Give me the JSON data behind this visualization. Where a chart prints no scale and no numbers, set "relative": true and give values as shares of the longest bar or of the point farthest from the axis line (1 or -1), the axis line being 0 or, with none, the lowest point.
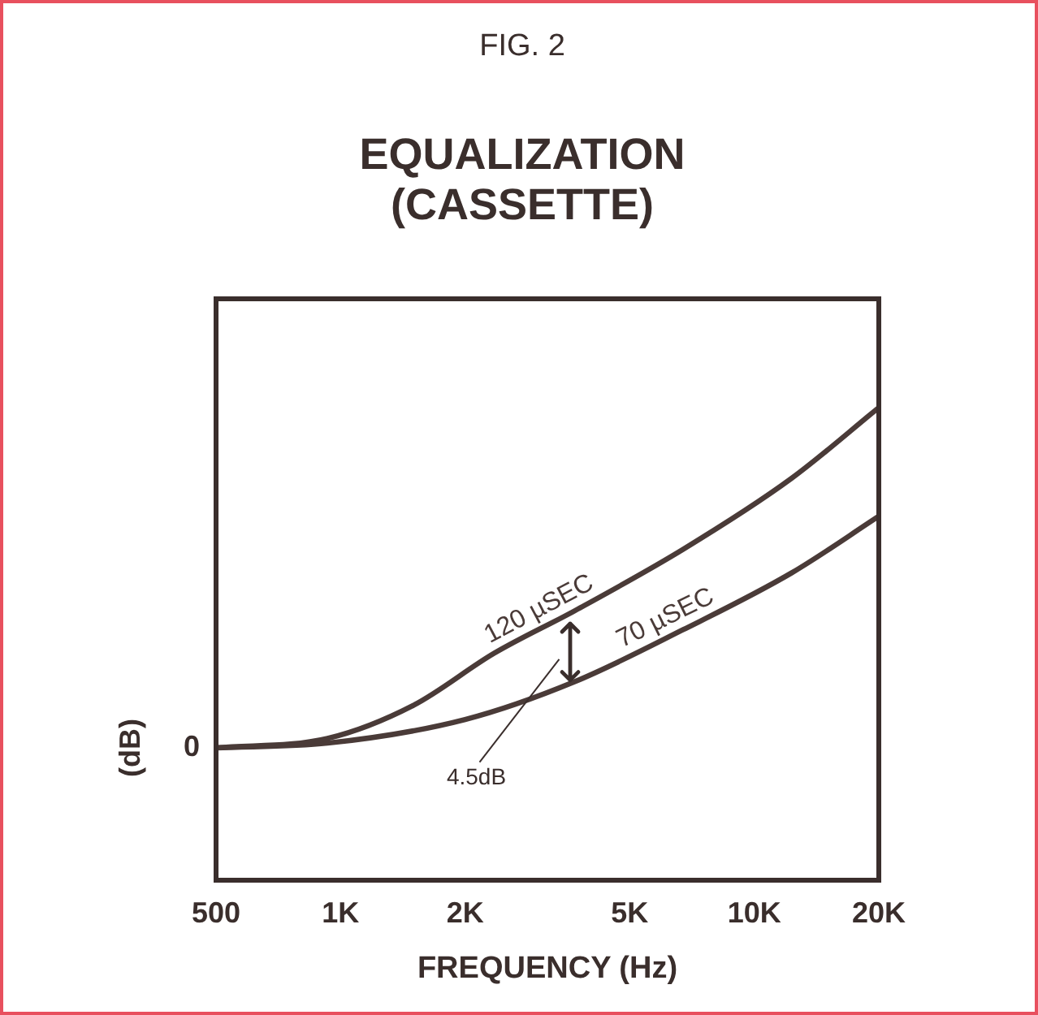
{
  "chart_data": {
    "type": "line",
    "subtitle": "FIG. 2",
    "title": "EQUALIZATION\n(CASSETTE)",
    "xlabel": "FREQUENCY (Hz)",
    "ylabel": "(dB)",
    "relative": true,
    "log": "x",
    "xlim": [
      500,
      20000
    ],
    "xticks": [
      500,
      {
        "value": 1000,
        "label": "1K"
      },
      {
        "value": 2000,
        "label": "2K"
      },
      {
        "value": 5000,
        "label": "5K"
      },
      {
        "value": 10000,
        "label": "10K"
      },
      {
        "value": 20000,
        "label": "20K"
      }
    ],
    "series": [
      {
        "name": "120 µSEC",
        "color": "#4a3b38",
        "x": [
          500,
          930,
          1500,
          2350,
          3680,
          6730,
          12300,
          20000
        ],
        "values": [
          0.28,
          0.3,
          0.37,
          0.48,
          0.57,
          0.7,
          0.85,
          1
        ]
      },
      {
        "name": "70 µSEC",
        "color": "#4a3b38",
        "x": [
          500,
          930,
          2000,
          3680,
          6730,
          12300,
          20000
        ],
        "values": [
          0.28,
          0.29,
          0.34,
          0.42,
          0.53,
          0.65,
          0.77
        ]
      }
    ],
    "annotations": [
      "0",
      "4.5dB"
    ],
    "grid": false,
    "marker": "none",
    "line_style": "solid"
  }
}
